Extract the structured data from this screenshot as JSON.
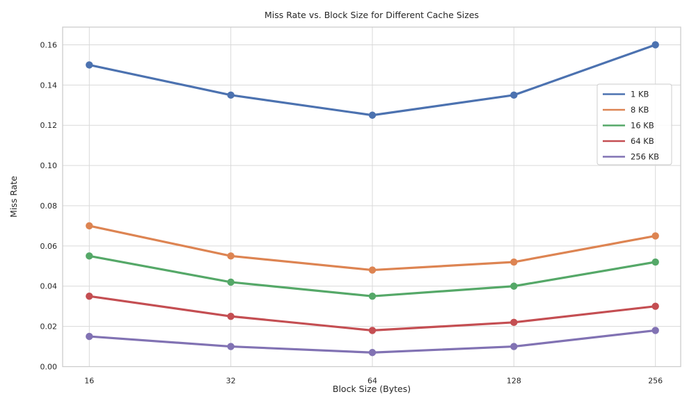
{
  "chart_data": {
    "type": "line",
    "title": "Miss Rate vs. Block Size for Different Cache Sizes",
    "xlabel": "Block Size (Bytes)",
    "ylabel": "Miss Rate",
    "categories": [
      16,
      32,
      64,
      128,
      256
    ],
    "x_tick_labels": [
      "16",
      "32",
      "64",
      "128",
      "256"
    ],
    "y_tick_labels": [
      "0.00",
      "0.02",
      "0.04",
      "0.06",
      "0.08",
      "0.10",
      "0.12",
      "0.14",
      "0.16"
    ],
    "y_tick_values": [
      0.0,
      0.02,
      0.04,
      0.06,
      0.08,
      0.1,
      0.12,
      0.14,
      0.16
    ],
    "ylim": [
      0,
      0.1688
    ],
    "grid": true,
    "legend_position": "upper right inset",
    "series": [
      {
        "name": "1 KB",
        "color": "#4C72B0",
        "values": [
          0.15,
          0.135,
          0.125,
          0.135,
          0.16
        ]
      },
      {
        "name": "8 KB",
        "color": "#DD8452",
        "values": [
          0.07,
          0.055,
          0.048,
          0.052,
          0.065
        ]
      },
      {
        "name": "16 KB",
        "color": "#55A868",
        "values": [
          0.055,
          0.042,
          0.035,
          0.04,
          0.052
        ]
      },
      {
        "name": "64 KB",
        "color": "#C44E52",
        "values": [
          0.035,
          0.025,
          0.018,
          0.022,
          0.03
        ]
      },
      {
        "name": "256 KB",
        "color": "#8172B3",
        "values": [
          0.015,
          0.01,
          0.007,
          0.01,
          0.018
        ]
      }
    ],
    "style": {
      "grid_color": "#d9d9d9",
      "spine_color": "#cccccc",
      "background": "#ffffff",
      "text_color": "#262626"
    }
  }
}
